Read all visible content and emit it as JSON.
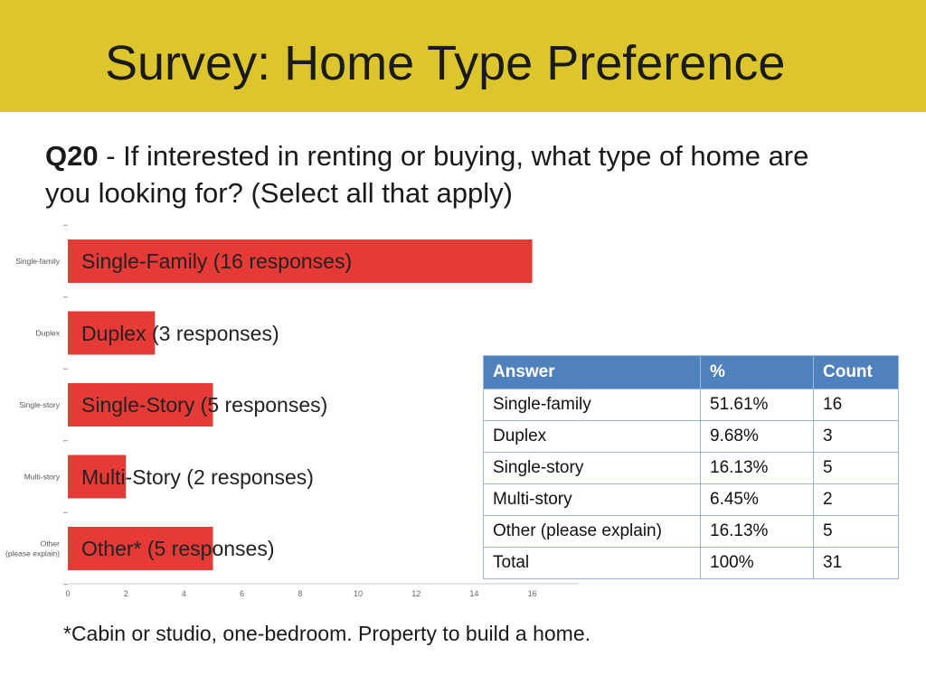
{
  "title": "Survey: Home Type Preference",
  "question": {
    "number": "Q20",
    "text": " - If interested in renting or buying, what type of home are you looking for? (Select all that apply)"
  },
  "chart_data": {
    "type": "bar",
    "orientation": "horizontal",
    "categories": [
      "Single-family",
      "Duplex",
      "Single-story",
      "Multi-story",
      "Other (please explain)"
    ],
    "values": [
      16,
      3,
      5,
      2,
      5
    ],
    "bar_labels": [
      "Single-Family (16 responses)",
      "Duplex (3 responses)",
      "Single-Story (5 responses)",
      "Multi-Story (2 responses)",
      "Other* (5 responses)"
    ],
    "xlim": [
      0,
      16
    ],
    "xticks": [
      "0",
      "2",
      "4",
      "6",
      "8",
      "10",
      "12",
      "14",
      "16"
    ],
    "bar_color": "#e63a36",
    "grid": false
  },
  "table": {
    "headers": [
      "Answer",
      "%",
      "Count"
    ],
    "rows": [
      [
        "Single-family",
        "51.61%",
        "16"
      ],
      [
        "Duplex",
        "9.68%",
        "3"
      ],
      [
        "Single-story",
        "16.13%",
        "5"
      ],
      [
        "Multi-story",
        "6.45%",
        "2"
      ],
      [
        "Other (please explain)",
        "16.13%",
        "5"
      ],
      [
        "Total",
        "100%",
        "31"
      ]
    ],
    "header_color": "#4f81bd"
  },
  "footnote": "*Cabin or studio, one-bedroom. Property to build a home.",
  "colors": {
    "header_band": "#ddc62d",
    "bar": "#e63a36",
    "table_header": "#4f81bd"
  }
}
